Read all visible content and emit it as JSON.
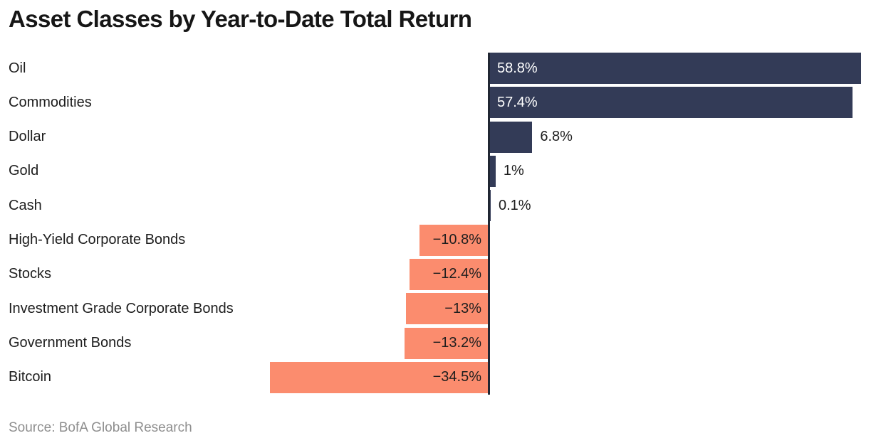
{
  "title": "Asset Classes by Year-to-Date Total Return",
  "source": "Source: BofA Global Research",
  "colors": {
    "positive_bar": "#333b57",
    "negative_bar": "#fb8c6e",
    "axis_line": "#202633",
    "title_text": "#161616",
    "category_text": "#1d1d1d",
    "value_text_inside_positive": "#ffffff",
    "value_text_dark": "#1d1d1d",
    "source_text": "#8e8e8e",
    "background": "#ffffff"
  },
  "chart_data": {
    "type": "bar",
    "orientation": "horizontal",
    "title": "Asset Classes by Year-to-Date Total Return",
    "xlabel": "",
    "ylabel": "",
    "xlim": [
      -40,
      60
    ],
    "grid": false,
    "legend": "none",
    "unit": "%",
    "categories": [
      "Oil",
      "Commodities",
      "Dollar",
      "Gold",
      "Cash",
      "High-Yield Corporate Bonds",
      "Stocks",
      "Investment Grade Corporate Bonds",
      "Government Bonds",
      "Bitcoin"
    ],
    "values": [
      58.8,
      57.4,
      6.8,
      1,
      0.1,
      -10.8,
      -12.4,
      -13,
      -13.2,
      -34.5
    ],
    "value_labels": [
      "58.8%",
      "57.4%",
      "6.8%",
      "1%",
      "0.1%",
      "−10.8%",
      "−12.4%",
      "−13%",
      "−13.2%",
      "−34.5%"
    ],
    "source": "Source: BofA Global Research"
  }
}
